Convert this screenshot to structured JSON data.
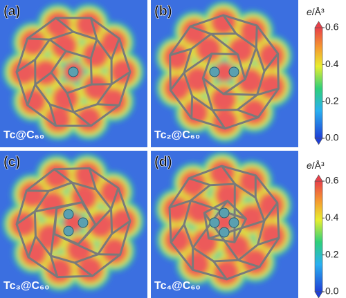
{
  "panels": [
    {
      "tag": "(a)",
      "label": "Tc@C₆₀"
    },
    {
      "tag": "(b)",
      "label": "Tc₂@C₆₀"
    },
    {
      "tag": "(c)",
      "label": "Tc₃@C₆₀"
    },
    {
      "tag": "(d)",
      "label": "Tc₄@C₆₀"
    }
  ],
  "colorbars": [
    {
      "label_symbol": "e",
      "label_unit": "/Å³",
      "range": [
        0,
        0.6
      ],
      "ticks": [
        {
          "value": 0,
          "label": "0.0"
        },
        {
          "value": 0.2,
          "label": "0.2"
        },
        {
          "value": 0.4,
          "label": "0.4"
        },
        {
          "value": 0.6,
          "label": "0.6"
        }
      ]
    },
    {
      "label_symbol": "e",
      "label_unit": "/Å³",
      "range": [
        0,
        0.6
      ],
      "ticks": [
        {
          "value": 0,
          "label": "0.0"
        },
        {
          "value": 0.2,
          "label": "0.2"
        },
        {
          "value": 0.4,
          "label": "0.4"
        },
        {
          "value": 0.6,
          "label": "0.6"
        }
      ]
    }
  ]
}
